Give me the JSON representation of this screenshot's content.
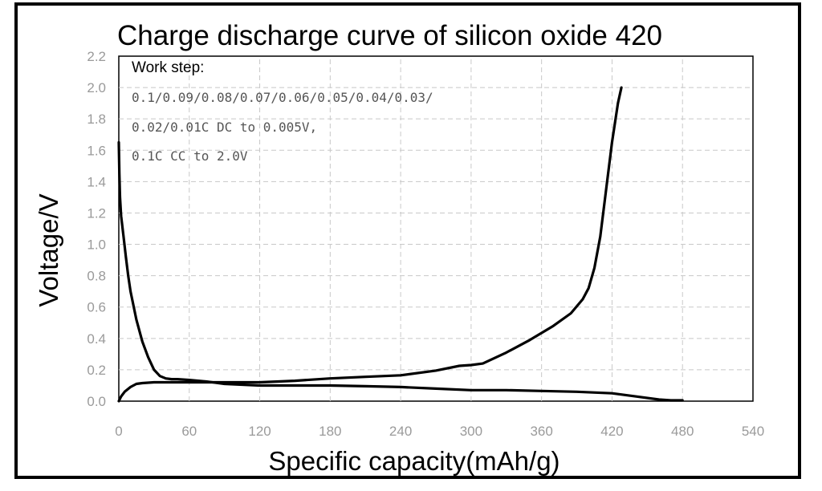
{
  "chart_data": {
    "type": "line",
    "title": "Charge discharge curve of silicon oxide 420",
    "xlabel": "Specific capacity(mAh/g)",
    "ylabel": "Voltage/V",
    "xlim": [
      0,
      540
    ],
    "ylim": [
      0,
      2.2
    ],
    "xticks": [
      "0",
      "60",
      "120",
      "180",
      "240",
      "300",
      "360",
      "420",
      "480",
      "540"
    ],
    "yticks": [
      "0.0",
      "0.2",
      "0.4",
      "0.6",
      "0.8",
      "1.0",
      "1.2",
      "1.4",
      "1.6",
      "1.8",
      "2.0",
      "2.2"
    ],
    "grid": true,
    "annotation": {
      "heading": "Work step:",
      "lines": [
        "0.1/0.09/0.08/0.07/0.06/0.05/0.04/0.03/",
        "0.02/0.01C DC to 0.005V,",
        "0.1C CC to 2.0V"
      ]
    },
    "series": [
      {
        "values_x": [
          0,
          0.5,
          1,
          2,
          4,
          6,
          8,
          10,
          15,
          20,
          25,
          30,
          35,
          40,
          45,
          50,
          60,
          75,
          90,
          105,
          120,
          150,
          180,
          210,
          240,
          270,
          300,
          330,
          360,
          390,
          420,
          440,
          460,
          470,
          480
        ],
        "values_y": [
          1.65,
          1.45,
          1.3,
          1.18,
          1.05,
          0.92,
          0.8,
          0.7,
          0.52,
          0.38,
          0.28,
          0.2,
          0.16,
          0.145,
          0.14,
          0.14,
          0.135,
          0.125,
          0.11,
          0.105,
          0.1,
          0.1,
          0.1,
          0.095,
          0.09,
          0.08,
          0.07,
          0.07,
          0.065,
          0.06,
          0.05,
          0.03,
          0.01,
          0.005,
          0.005
        ]
      },
      {
        "values_x": [
          0,
          2,
          5,
          10,
          15,
          20,
          30,
          45,
          60,
          90,
          120,
          150,
          180,
          210,
          240,
          270,
          290,
          300,
          310,
          330,
          350,
          370,
          385,
          395,
          400,
          405,
          410,
          415,
          420,
          425,
          428
        ],
        "values_y": [
          0.0,
          0.03,
          0.06,
          0.09,
          0.11,
          0.115,
          0.12,
          0.12,
          0.12,
          0.12,
          0.12,
          0.13,
          0.145,
          0.155,
          0.165,
          0.195,
          0.225,
          0.23,
          0.24,
          0.31,
          0.39,
          0.48,
          0.56,
          0.65,
          0.72,
          0.85,
          1.05,
          1.35,
          1.65,
          1.9,
          2.0
        ]
      }
    ]
  }
}
